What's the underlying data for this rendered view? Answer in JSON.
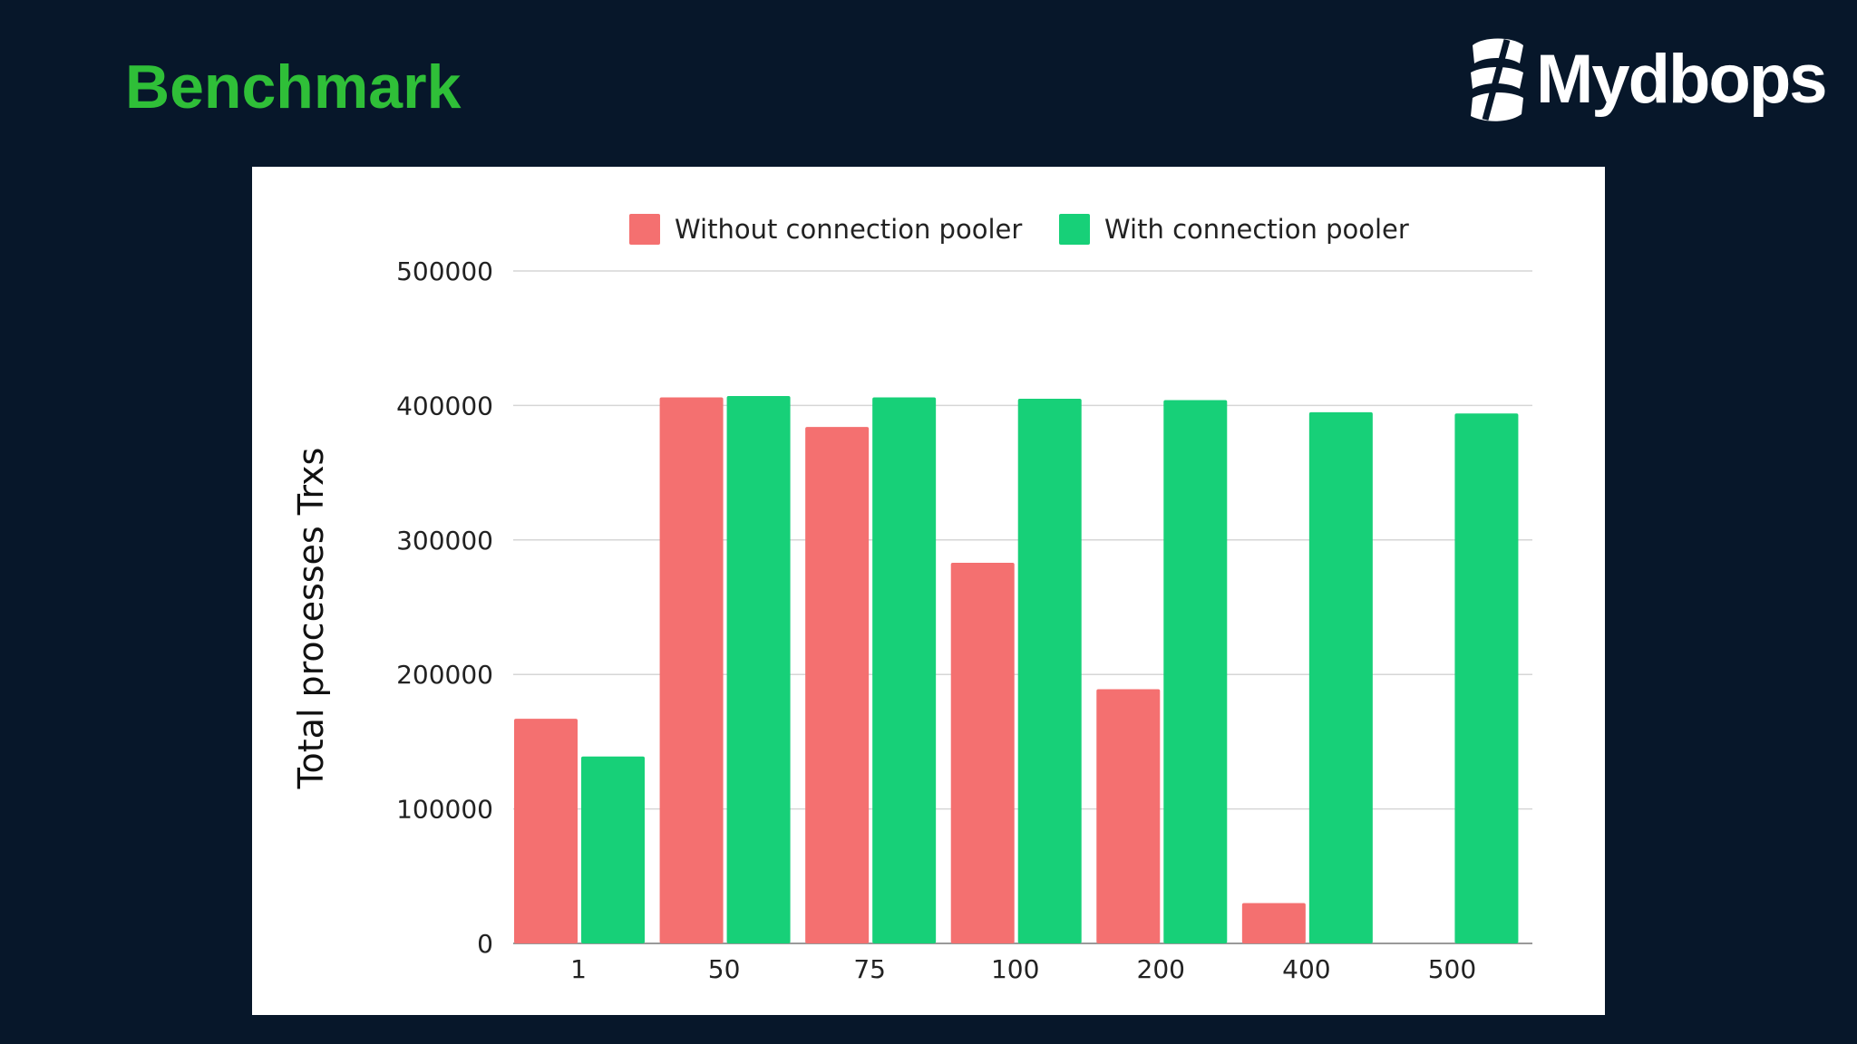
{
  "slide": {
    "title": "Benchmark"
  },
  "logo": {
    "text": "Mydbops"
  },
  "colors": {
    "background": "#07172a",
    "title": "#2fbf38",
    "without_pooler": "#f47070",
    "with_pooler": "#17d078"
  },
  "chart_data": {
    "type": "bar",
    "categories": [
      "1",
      "50",
      "75",
      "100",
      "200",
      "400",
      "500"
    ],
    "series": [
      {
        "name": "Without connection pooler",
        "values": [
          167000,
          406000,
          384000,
          283000,
          189000,
          30000,
          0
        ]
      },
      {
        "name": "With connection pooler",
        "values": [
          139000,
          407000,
          406000,
          405000,
          404000,
          395000,
          394000
        ]
      }
    ],
    "title": "",
    "xlabel": "",
    "ylabel": "Total processes Trxs",
    "ylim": [
      0,
      500000
    ],
    "yticks": [
      "0",
      "100000",
      "200000",
      "300000",
      "400000",
      "500000"
    ],
    "grid": true,
    "legend_position": "top"
  }
}
